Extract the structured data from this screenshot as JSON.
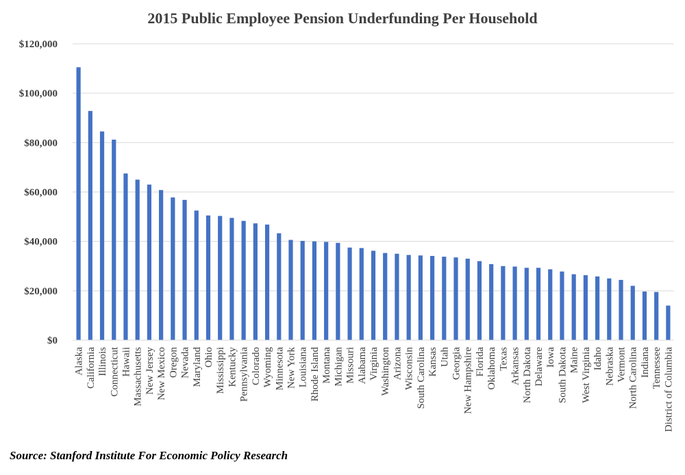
{
  "chart_data": {
    "type": "bar",
    "title": "2015 Public Employee Pension Underfunding Per Household",
    "xlabel": "",
    "ylabel": "",
    "ylim": [
      0,
      120000
    ],
    "yticks": [
      0,
      20000,
      40000,
      60000,
      80000,
      100000,
      120000
    ],
    "ytick_labels": [
      "$0",
      "$20,000",
      "$40,000",
      "$60,000",
      "$80,000",
      "$100,000",
      "$120,000"
    ],
    "grid": true,
    "legend": "none",
    "bar_color": "#4472C4",
    "categories": [
      "Alaska",
      "California",
      "Illinois",
      "Connecticut",
      "Hawaii",
      "Massachusetts",
      "New Jersey",
      "New Mexico",
      "Oregon",
      "Nevada",
      "Maryland",
      "Ohio",
      "Mississippi",
      "Kentucky",
      "Pennsylvania",
      "Colorado",
      "Wyoming",
      "Minnesota",
      "New York",
      "Louisiana",
      "Rhode Island",
      "Montana",
      "Michigan",
      "Missouri",
      "Alabama",
      "Virginia",
      "Washington",
      "Arizona",
      "Wisconsin",
      "South Carolina",
      "Kansas",
      "Utah",
      "Georgia",
      "New Hampshire",
      "Florida",
      "Oklahoma",
      "Texas",
      "Arkansas",
      "North Dakota",
      "Delaware",
      "Iowa",
      "South Dakota",
      "Maine",
      "West Virginia",
      "Idaho",
      "Nebraska",
      "Vermont",
      "North Carolina",
      "Indiana",
      "Tennessee",
      "District of Columbia"
    ],
    "values": [
      110500,
      92800,
      84500,
      81200,
      67500,
      65000,
      63000,
      60800,
      57800,
      56800,
      52500,
      50500,
      50300,
      49500,
      48300,
      47300,
      46800,
      43300,
      40600,
      40200,
      40000,
      39800,
      39400,
      37500,
      37300,
      36200,
      35300,
      35000,
      34500,
      34300,
      34100,
      33800,
      33500,
      33000,
      32000,
      30800,
      30000,
      29800,
      29300,
      29300,
      28700,
      27800,
      26700,
      26300,
      25800,
      25000,
      24400,
      22000,
      19700,
      19500,
      14000
    ]
  },
  "footer": {
    "source": "Source:  Stanford Institute For Economic Policy Research"
  }
}
